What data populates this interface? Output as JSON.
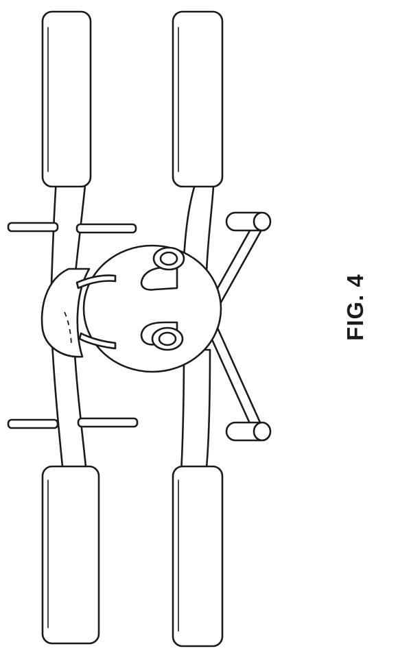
{
  "figure": {
    "label": "FIG. 4"
  }
}
